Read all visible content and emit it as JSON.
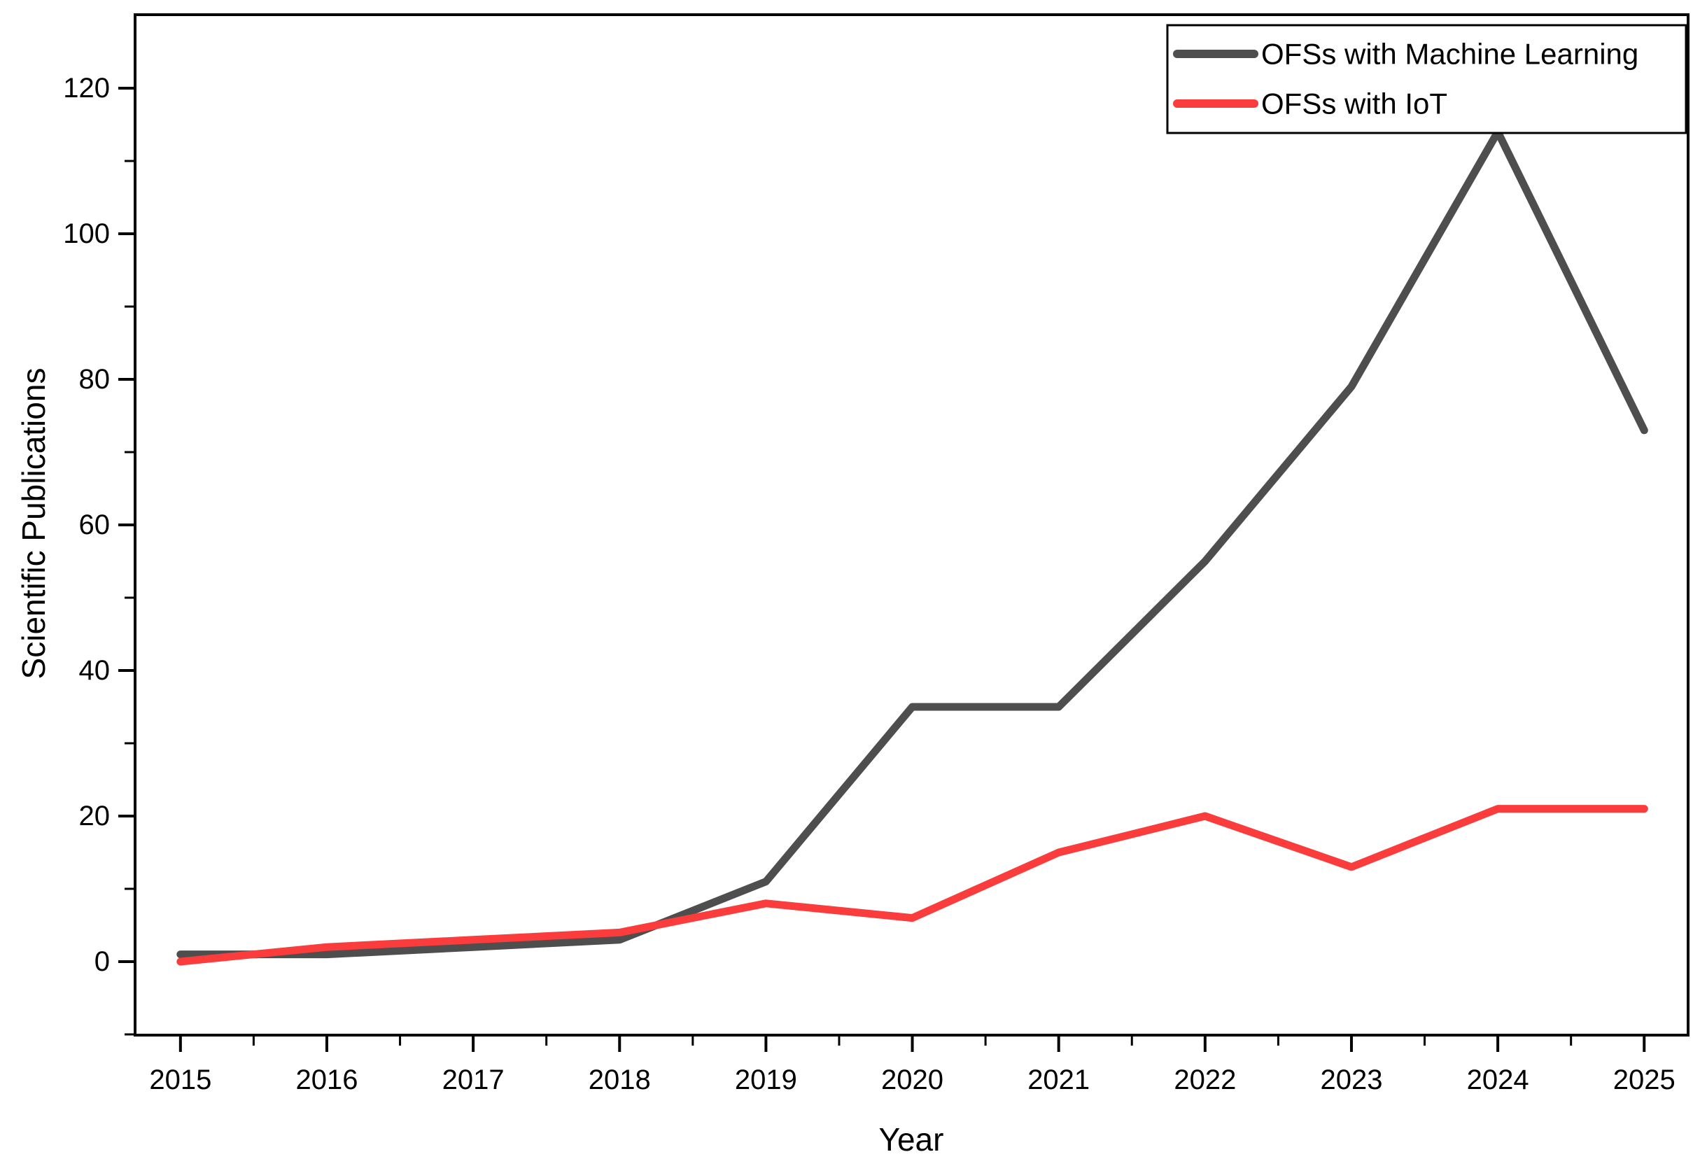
{
  "figure": {
    "background": "#ffffff",
    "axis_color": "#000000",
    "x_axis_title": "Year",
    "y_axis_title": "Scientific Publications"
  },
  "legend": {
    "position": "top-right",
    "border_color": "#000000",
    "entries": [
      {
        "label": "OFSs with Machine Learning",
        "color": "#4e4e4e"
      },
      {
        "label": "OFSs with IoT",
        "color": "#fa3c3c"
      }
    ]
  },
  "chart_data": {
    "type": "line",
    "title": "",
    "xlabel": "Year",
    "ylabel": "Scientific Publications",
    "x": [
      2015,
      2016,
      2017,
      2018,
      2019,
      2020,
      2021,
      2022,
      2023,
      2024,
      2025
    ],
    "series": [
      {
        "name": "OFSs with Machine Learning",
        "color": "#4e4e4e",
        "values": [
          1,
          1,
          2,
          3,
          11,
          35,
          35,
          55,
          79,
          114,
          73
        ]
      },
      {
        "name": "OFSs with IoT",
        "color": "#fa3c3c",
        "values": [
          0,
          2,
          3,
          4,
          8,
          6,
          15,
          20,
          13,
          21,
          21
        ]
      }
    ],
    "x_ticks_major": [
      2015,
      2016,
      2017,
      2018,
      2019,
      2020,
      2021,
      2022,
      2023,
      2024,
      2025
    ],
    "x_ticks_minor": [
      2015.5,
      2016.5,
      2017.5,
      2018.5,
      2019.5,
      2020.5,
      2021.5,
      2022.5,
      2023.5,
      2024.5
    ],
    "y_ticks_major": [
      0,
      20,
      40,
      60,
      80,
      100,
      120
    ],
    "y_ticks_minor": [
      -10,
      10,
      30,
      50,
      70,
      90,
      110
    ],
    "xlim": [
      2014.69,
      2025.3
    ],
    "ylim": [
      -10.1,
      130.1
    ],
    "grid": false,
    "legend_position": "top-right"
  }
}
